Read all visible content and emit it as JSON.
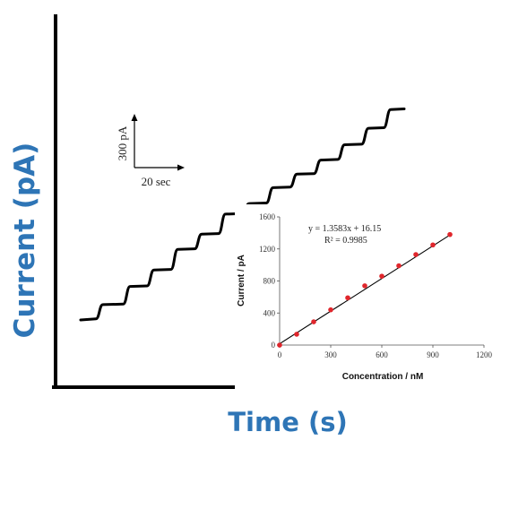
{
  "chart_data": [
    {
      "type": "line",
      "title": "",
      "xlabel": "Time (s)",
      "ylabel": "Current (pA)",
      "scale_bar": {
        "y_label": "300 pA",
        "x_label": "20 sec"
      },
      "series": [
        {
          "x": [
            0,
            18,
            26,
            50,
            58,
            78,
            86,
            106,
            114,
            134,
            142,
            162,
            170,
            190,
            198,
            218,
            226,
            246,
            254,
            274,
            282,
            302,
            310,
            330,
            338,
            356,
            364,
            380
          ],
          "y": [
            300,
            320,
            560,
            570,
            870,
            880,
            1150,
            1160,
            1500,
            1510,
            1760,
            1770,
            2100,
            2110,
            2280,
            2290,
            2550,
            2560,
            2780,
            2790,
            3020,
            3030,
            3280,
            3290,
            3560,
            3570,
            3880,
            3890
          ]
        }
      ]
    },
    {
      "type": "scatter",
      "title": "",
      "xlabel": "Concentration / nM",
      "ylabel": "Current / pA",
      "xlim": [
        0,
        1200
      ],
      "ylim": [
        0,
        1600
      ],
      "xticks": [
        "0",
        "300",
        "600",
        "900",
        "1200"
      ],
      "yticks": [
        "0",
        "400",
        "800",
        "1200",
        "1600"
      ],
      "equation": "y = 1.3583x + 16.15",
      "r_squared": "R² = 0.9985",
      "fit": {
        "slope": 1.3583,
        "intercept": 16.15
      },
      "series": [
        {
          "x": [
            0,
            100,
            200,
            300,
            400,
            500,
            600,
            700,
            800,
            900,
            1000
          ],
          "y": [
            0,
            135,
            290,
            440,
            590,
            740,
            860,
            990,
            1130,
            1250,
            1380
          ]
        }
      ]
    }
  ]
}
